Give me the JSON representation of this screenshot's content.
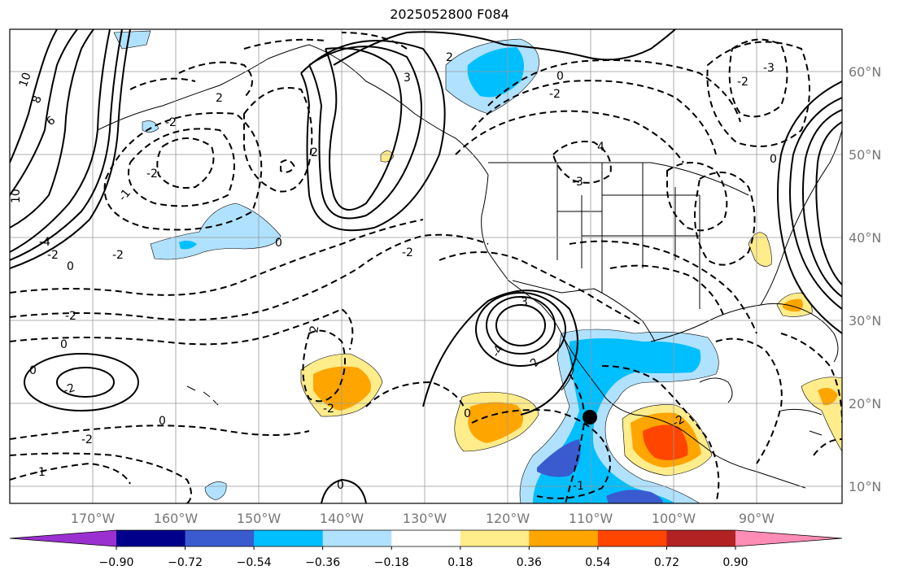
{
  "title": "2025052800 F084",
  "longitude_labels": [
    "170°W",
    "160°W",
    "150°W",
    "140°W",
    "130°W",
    "120°W",
    "110°W",
    "100°W",
    "90°W"
  ],
  "latitude_labels": [
    "60°N",
    "50°N",
    "40°N",
    "30°N",
    "20°N",
    "10°N"
  ],
  "colorbar": {
    "tick_labels": [
      "−0.90",
      "−0.72",
      "−0.54",
      "−0.36",
      "−0.18",
      "0.18",
      "0.36",
      "0.54",
      "0.72",
      "0.90"
    ],
    "colors": [
      "#9b30d0",
      "#00008b",
      "#3a5bd0",
      "#00bfff",
      "#b0e2ff",
      "#ffffff",
      "#ffec8b",
      "#ffa500",
      "#ff4500",
      "#b22222",
      "#ff8cb4"
    ]
  },
  "contour_labels": [
    "10",
    "8",
    "6",
    "-2",
    "2",
    "-2",
    "2",
    "-3",
    "-2",
    "3",
    "2",
    "0",
    "4",
    "0",
    "-2",
    "-4",
    "-3",
    "0",
    "-2",
    "-1",
    "10",
    "-4",
    "-2",
    "0",
    "-2",
    "0",
    "-2",
    "2",
    "-2",
    "0",
    "0",
    "-2",
    "-1",
    "-2",
    "0",
    "0",
    "-1",
    "-2",
    "-3",
    "-4",
    "3",
    "4",
    "2",
    "-1",
    "0",
    "2",
    "-2",
    "-1",
    "0",
    "0",
    "-2",
    "-2",
    "0",
    "-1"
  ],
  "marker": "station-dot"
}
